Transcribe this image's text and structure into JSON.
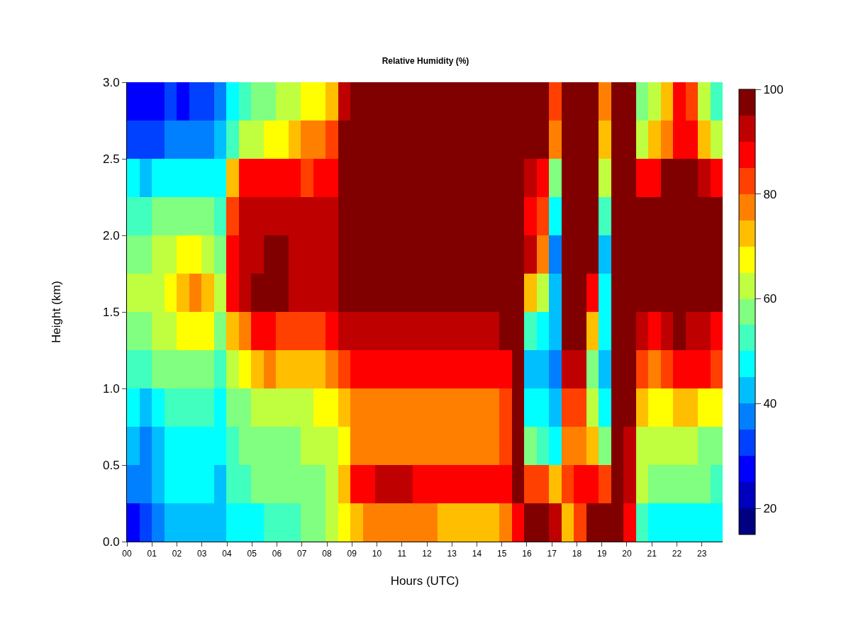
{
  "chart_data": {
    "type": "heatmap",
    "title": "Relative Humidity (%)",
    "xlabel": "Hours (UTC)",
    "ylabel": "Height (km)",
    "xlim": [
      0,
      23.83
    ],
    "ylim": [
      0,
      3.0
    ],
    "xticks": [
      {
        "value": 0,
        "label": "00"
      },
      {
        "value": 1,
        "label": "01"
      },
      {
        "value": 2,
        "label": "02"
      },
      {
        "value": 3,
        "label": "03"
      },
      {
        "value": 4,
        "label": "04"
      },
      {
        "value": 5,
        "label": "05"
      },
      {
        "value": 6,
        "label": "06"
      },
      {
        "value": 7,
        "label": "07"
      },
      {
        "value": 8,
        "label": "08"
      },
      {
        "value": 9,
        "label": "09"
      },
      {
        "value": 10,
        "label": "10"
      },
      {
        "value": 11,
        "label": "11"
      },
      {
        "value": 12,
        "label": "12"
      },
      {
        "value": 13,
        "label": "13"
      },
      {
        "value": 14,
        "label": "14"
      },
      {
        "value": 15,
        "label": "15"
      },
      {
        "value": 16,
        "label": "16"
      },
      {
        "value": 17,
        "label": "17"
      },
      {
        "value": 18,
        "label": "18"
      },
      {
        "value": 19,
        "label": "19"
      },
      {
        "value": 20,
        "label": "20"
      },
      {
        "value": 21,
        "label": "21"
      },
      {
        "value": 22,
        "label": "22"
      },
      {
        "value": 23,
        "label": "23"
      }
    ],
    "yticks": [
      {
        "value": 0,
        "label": "0.0"
      },
      {
        "value": 0.5,
        "label": "0.5"
      },
      {
        "value": 1,
        "label": "1.0"
      },
      {
        "value": 1.5,
        "label": "1.5"
      },
      {
        "value": 2,
        "label": "2.0"
      },
      {
        "value": 2.5,
        "label": "2.5"
      },
      {
        "value": 3,
        "label": "3.0"
      }
    ],
    "clim": [
      15,
      100
    ],
    "cticks": [
      20,
      40,
      60,
      80,
      100
    ],
    "colors": [
      "#000080",
      "#0000bf",
      "#0000ff",
      "#0040ff",
      "#0080ff",
      "#00bfff",
      "#00ffff",
      "#40ffbf",
      "#80ff80",
      "#bfff40",
      "#ffff00",
      "#ffbf00",
      "#ff8000",
      "#ff4000",
      "#ff0000",
      "#bf0000",
      "#800000"
    ],
    "cells": [
      [
        27,
        25,
        27,
        30,
        28,
        30,
        32,
        35,
        45,
        50,
        55,
        58,
        60,
        62,
        65,
        67,
        70,
        90,
        97,
        97,
        97,
        97,
        97,
        97,
        97,
        97,
        97,
        97,
        97,
        97,
        97,
        97,
        97,
        97,
        80,
        97,
        97,
        97,
        75,
        97,
        97,
        55,
        60,
        70,
        85,
        80,
        60,
        50
      ],
      [
        32,
        30,
        33,
        35,
        35,
        37,
        38,
        40,
        52,
        60,
        62,
        65,
        68,
        72,
        75,
        78,
        80,
        95,
        97,
        97,
        97,
        97,
        97,
        97,
        97,
        97,
        97,
        97,
        97,
        97,
        97,
        97,
        97,
        97,
        75,
        97,
        97,
        97,
        70,
        97,
        97,
        62,
        70,
        78,
        88,
        87,
        72,
        60
      ],
      [
        45,
        43,
        45,
        47,
        47,
        48,
        48,
        47,
        72,
        85,
        85,
        87,
        88,
        85,
        82,
        85,
        88,
        97,
        97,
        97,
        97,
        97,
        97,
        97,
        97,
        97,
        97,
        97,
        97,
        97,
        97,
        97,
        92,
        88,
        55,
        97,
        97,
        97,
        60,
        97,
        97,
        87,
        85,
        95,
        97,
        97,
        90,
        85
      ],
      [
        52,
        52,
        55,
        57,
        57,
        58,
        55,
        52,
        82,
        90,
        92,
        92,
        92,
        90,
        90,
        92,
        92,
        97,
        97,
        97,
        97,
        97,
        97,
        97,
        97,
        97,
        97,
        97,
        97,
        97,
        97,
        97,
        88,
        80,
        45,
        97,
        97,
        97,
        52,
        97,
        97,
        97,
        97,
        97,
        97,
        97,
        97,
        97
      ],
      [
        58,
        57,
        60,
        62,
        65,
        65,
        62,
        57,
        85,
        92,
        92,
        95,
        95,
        92,
        92,
        92,
        92,
        97,
        97,
        97,
        97,
        97,
        97,
        97,
        97,
        97,
        97,
        97,
        97,
        97,
        97,
        97,
        90,
        75,
        38,
        97,
        97,
        95,
        42,
        97,
        97,
        97,
        97,
        97,
        97,
        97,
        97,
        97
      ],
      [
        60,
        60,
        62,
        65,
        70,
        75,
        72,
        62,
        85,
        92,
        95,
        95,
        95,
        92,
        92,
        90,
        92,
        97,
        97,
        97,
        97,
        97,
        97,
        97,
        97,
        97,
        97,
        97,
        97,
        97,
        97,
        97,
        70,
        60,
        40,
        97,
        97,
        88,
        45,
        97,
        97,
        97,
        97,
        97,
        97,
        97,
        97,
        97
      ],
      [
        57,
        57,
        60,
        62,
        65,
        68,
        65,
        58,
        72,
        78,
        85,
        85,
        82,
        80,
        80,
        82,
        85,
        92,
        92,
        92,
        92,
        92,
        93,
        93,
        93,
        93,
        93,
        93,
        93,
        93,
        95,
        97,
        50,
        48,
        40,
        97,
        97,
        72,
        45,
        97,
        97,
        90,
        85,
        92,
        95,
        92,
        90,
        88
      ],
      [
        52,
        52,
        55,
        55,
        57,
        58,
        57,
        52,
        62,
        68,
        72,
        75,
        72,
        72,
        70,
        72,
        75,
        82,
        85,
        85,
        87,
        87,
        85,
        85,
        87,
        87,
        85,
        85,
        87,
        85,
        88,
        97,
        42,
        42,
        37,
        90,
        92,
        58,
        42,
        97,
        97,
        80,
        77,
        80,
        88,
        88,
        85,
        80
      ],
      [
        45,
        42,
        47,
        50,
        50,
        52,
        50,
        47,
        55,
        58,
        60,
        62,
        62,
        62,
        62,
        65,
        67,
        72,
        77,
        77,
        77,
        78,
        77,
        77,
        77,
        77,
        77,
        77,
        77,
        77,
        80,
        95,
        48,
        47,
        40,
        80,
        80,
        62,
        45,
        97,
        95,
        70,
        68,
        67,
        72,
        70,
        68,
        65
      ],
      [
        40,
        38,
        42,
        45,
        47,
        48,
        47,
        45,
        52,
        55,
        57,
        57,
        58,
        58,
        60,
        60,
        62,
        67,
        75,
        75,
        75,
        77,
        77,
        77,
        77,
        77,
        75,
        75,
        75,
        77,
        80,
        95,
        55,
        50,
        45,
        75,
        77,
        72,
        55,
        97,
        92,
        62,
        60,
        60,
        62,
        62,
        58,
        57
      ],
      [
        38,
        35,
        40,
        45,
        47,
        47,
        45,
        43,
        50,
        52,
        55,
        55,
        55,
        57,
        57,
        58,
        60,
        72,
        85,
        88,
        90,
        90,
        90,
        88,
        88,
        88,
        88,
        88,
        88,
        85,
        88,
        95,
        80,
        80,
        70,
        82,
        85,
        88,
        80,
        97,
        90,
        60,
        58,
        55,
        58,
        57,
        55,
        52
      ],
      [
        28,
        30,
        35,
        40,
        42,
        42,
        40,
        40,
        45,
        47,
        48,
        50,
        52,
        52,
        55,
        57,
        60,
        67,
        72,
        75,
        77,
        77,
        75,
        75,
        75,
        72,
        72,
        70,
        72,
        72,
        75,
        88,
        95,
        95,
        90,
        72,
        80,
        97,
        95,
        95,
        85,
        50,
        47,
        45,
        47,
        48,
        45,
        45
      ]
    ]
  }
}
